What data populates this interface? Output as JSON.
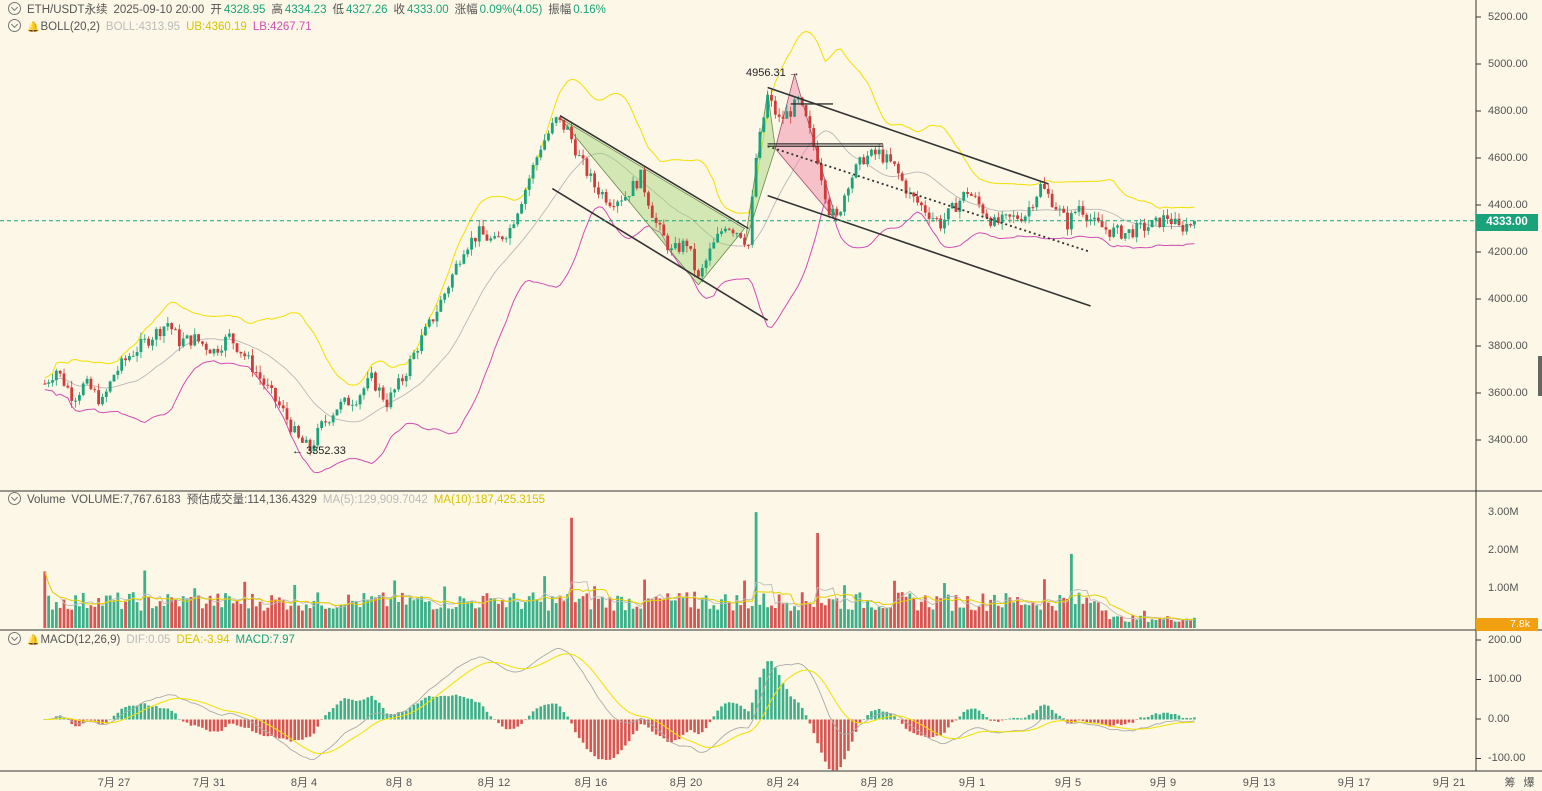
{
  "header": {
    "symbol": "ETH/USDT永续",
    "datetime": "2025-09-10 20:00",
    "open_label": "开",
    "open": "4328.95",
    "high_label": "高",
    "high": "4334.23",
    "low_label": "低",
    "low": "4327.26",
    "close_label": "收",
    "close": "4333.00",
    "change_label": "涨幅",
    "change": "0.09%(4.05)",
    "amp_label": "振幅",
    "amp": "0.16%"
  },
  "boll": {
    "name": "BOLL(20,2)",
    "boll": "BOLL:4313.95",
    "ub": "UB:4360.19",
    "lb": "LB:4267.71"
  },
  "volume": {
    "name": "Volume",
    "volume": "VOLUME:7,767.6183",
    "est": "预估成交量:114,136.4329",
    "ma5": "MA(5):129,909.7042",
    "ma10": "MA(10):187,425.3155"
  },
  "macd": {
    "name": "MACD(12,26,9)",
    "dif": "DIF:0.05",
    "dea": "DEA:-3.94",
    "macd": "MACD:7.97"
  },
  "price_axis": [
    "5200.00",
    "5000.00",
    "4800.00",
    "4600.00",
    "4400.00",
    "4200.00",
    "4000.00",
    "3800.00",
    "3600.00",
    "3400.00"
  ],
  "current_price": "4333.00",
  "volume_axis": [
    "3.00M",
    "2.00M",
    "1.00M"
  ],
  "current_volume": "7.8k",
  "macd_axis": [
    "200.00",
    "100.00",
    "0.00",
    "-100.00"
  ],
  "x_axis": [
    "7月 27",
    "7月 31",
    "8月 4",
    "8月 8",
    "8月 12",
    "8月 16",
    "8月 20",
    "8月 24",
    "8月 28",
    "9月 1",
    "9月 5",
    "9月 9",
    "9月 13",
    "9月 17",
    "9月 21"
  ],
  "corner_buttons": [
    "筹",
    "爆"
  ],
  "annotations": {
    "high": "4956.31",
    "low": "3352.33"
  },
  "colors": {
    "up": "#1aa37a",
    "down": "#d03a3a",
    "ub": "#f2e000",
    "lb": "#d04fb5",
    "mid": "#b8b8b8",
    "background": "#fcf7e6"
  },
  "chart_data": {
    "type": "candlestick",
    "interval": "4h",
    "price_range": [
      3230,
      5280
    ],
    "price_path": [
      [
        "07-23 00:00",
        3640
      ],
      [
        "07-23 12:00",
        3700
      ],
      [
        "07-24 06:00",
        3580
      ],
      [
        "07-24 18:00",
        3640
      ],
      [
        "07-25 12:00",
        3560
      ],
      [
        "07-26 00:00",
        3680
      ],
      [
        "07-26 16:00",
        3760
      ],
      [
        "07-27 12:00",
        3830
      ],
      [
        "07-28 08:00",
        3900
      ],
      [
        "07-28 20:00",
        3820
      ],
      [
        "07-29 12:00",
        3830
      ],
      [
        "07-30 08:00",
        3780
      ],
      [
        "07-31 00:00",
        3840
      ],
      [
        "07-31 16:00",
        3760
      ],
      [
        "08-01 12:00",
        3640
      ],
      [
        "08-02 08:00",
        3520
      ],
      [
        "08-03 00:00",
        3400
      ],
      [
        "08-03 12:00",
        3360
      ],
      [
        "08-04 00:00",
        3460
      ],
      [
        "08-04 16:00",
        3540
      ],
      [
        "08-05 12:00",
        3580
      ],
      [
        "08-06 04:00",
        3660
      ],
      [
        "08-06 20:00",
        3560
      ],
      [
        "08-07 12:00",
        3660
      ],
      [
        "08-08 04:00",
        3800
      ],
      [
        "08-08 20:00",
        3920
      ],
      [
        "08-09 12:00",
        4060
      ],
      [
        "08-10 04:00",
        4220
      ],
      [
        "08-10 20:00",
        4280
      ],
      [
        "08-11 12:00",
        4240
      ],
      [
        "08-12 04:00",
        4300
      ],
      [
        "08-12 20:00",
        4470
      ],
      [
        "08-13 12:00",
        4650
      ],
      [
        "08-14 04:00",
        4760
      ],
      [
        "08-14 16:00",
        4720
      ],
      [
        "08-15 04:00",
        4600
      ],
      [
        "08-15 20:00",
        4480
      ],
      [
        "08-16 12:00",
        4420
      ],
      [
        "08-17 04:00",
        4440
      ],
      [
        "08-17 20:00",
        4520
      ],
      [
        "08-18 12:00",
        4320
      ],
      [
        "08-19 04:00",
        4200
      ],
      [
        "08-19 20:00",
        4240
      ],
      [
        "08-20 08:00",
        4080
      ],
      [
        "08-20 20:00",
        4200
      ],
      [
        "08-21 12:00",
        4320
      ],
      [
        "08-22 04:00",
        4280
      ],
      [
        "08-22 12:00",
        4230
      ],
      [
        "08-22 20:00",
        4600
      ],
      [
        "08-23 08:00",
        4860
      ],
      [
        "08-23 20:00",
        4760
      ],
      [
        "08-24 08:00",
        4800
      ],
      [
        "08-24 16:00",
        4840
      ],
      [
        "08-25 00:00",
        4760
      ],
      [
        "08-25 12:00",
        4600
      ],
      [
        "08-26 00:00",
        4380
      ],
      [
        "08-26 08:00",
        4340
      ],
      [
        "08-26 20:00",
        4500
      ],
      [
        "08-27 12:00",
        4600
      ],
      [
        "08-28 04:00",
        4620
      ],
      [
        "08-28 20:00",
        4560
      ],
      [
        "08-29 12:00",
        4440
      ],
      [
        "08-30 04:00",
        4380
      ],
      [
        "08-30 20:00",
        4320
      ],
      [
        "08-31 12:00",
        4400
      ],
      [
        "09-01 00:00",
        4460
      ],
      [
        "09-01 12:00",
        4400
      ],
      [
        "09-02 04:00",
        4320
      ],
      [
        "09-02 20:00",
        4340
      ],
      [
        "09-03 12:00",
        4360
      ],
      [
        "09-04 04:00",
        4480
      ],
      [
        "09-04 16:00",
        4420
      ],
      [
        "09-05 08:00",
        4320
      ],
      [
        "09-05 20:00",
        4400
      ],
      [
        "09-06 12:00",
        4320
      ],
      [
        "09-07 04:00",
        4290
      ],
      [
        "09-07 20:00",
        4280
      ],
      [
        "09-08 12:00",
        4300
      ],
      [
        "09-09 04:00",
        4320
      ],
      [
        "09-09 16:00",
        4350
      ],
      [
        "09-10 04:00",
        4300
      ],
      [
        "09-10 20:00",
        4333
      ]
    ],
    "annotations": [
      {
        "text": "4956.31",
        "time": "08-24 12:00",
        "price": 4956.31
      },
      {
        "text": "3352.33",
        "time": "08-03 12:00",
        "price": 3352.33
      }
    ]
  }
}
